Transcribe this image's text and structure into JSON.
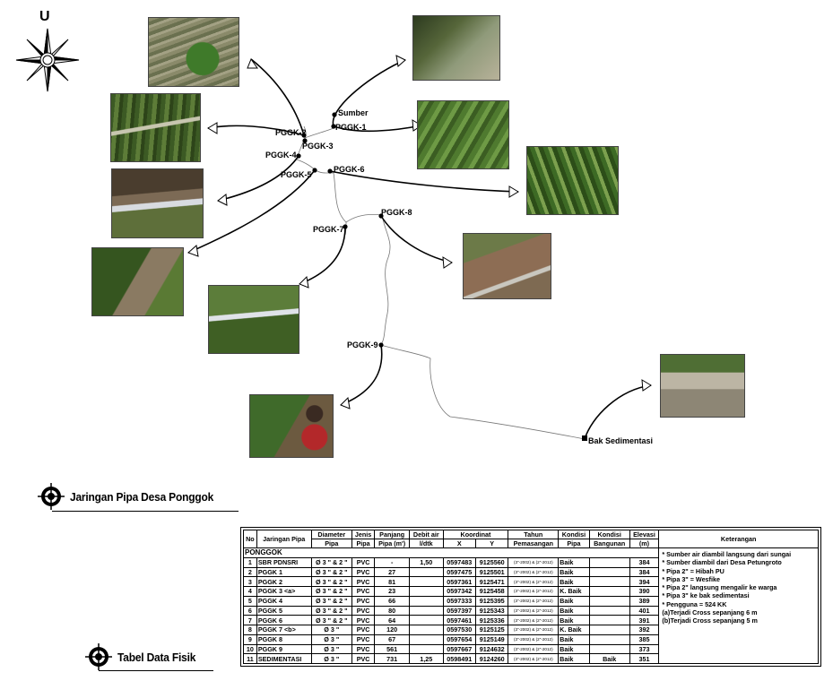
{
  "north_label": "U",
  "map": {
    "points": [
      {
        "id": "Sumber",
        "label": "Sumber"
      },
      {
        "id": "PGGK-1",
        "label": "PGGK-1"
      },
      {
        "id": "PGGK-2",
        "label": "PGGK-2"
      },
      {
        "id": "PGGK-3",
        "label": "PGGK-3"
      },
      {
        "id": "PGGK-4",
        "label": "PGGK-4"
      },
      {
        "id": "PGGK-5",
        "label": "PGGK-5"
      },
      {
        "id": "PGGK-6",
        "label": "PGGK-6"
      },
      {
        "id": "PGGK-7",
        "label": "PGGK-7"
      },
      {
        "id": "PGGK-8",
        "label": "PGGK-8"
      },
      {
        "id": "PGGK-9",
        "label": "PGGK-9"
      },
      {
        "id": "Bak Sedimentasi",
        "label": "Bak Sedimentasi"
      }
    ]
  },
  "headings": {
    "map_title": "Jaringan Pipa Desa Ponggok",
    "table_title": "Tabel Data Fisik"
  },
  "table": {
    "headers": {
      "no": "No",
      "jaringan": "Jaringan Pipa",
      "diameter": "Diameter",
      "diameter_sub": "Pipa",
      "jenis": "Jenis",
      "jenis_sub": "Pipa",
      "panjang": "Panjang",
      "panjang_sub": "Pipa (m')",
      "debit": "Debit air",
      "debit_sub": "l/dtk",
      "koordinat": "Koordinat",
      "x": "X",
      "y": "Y",
      "tahun": "Tahun",
      "tahun_sub": "Pemasangan",
      "kondisi_pipa": "Kondisi",
      "kondisi_pipa_sub": "Pipa",
      "kondisi_bangunan": "Kondisi",
      "kondisi_bangunan_sub": "Bangunan",
      "elevasi": "Elevasi",
      "elevasi_sub": "(m)",
      "keterangan": "Keterangan"
    },
    "group": "PONGGOK",
    "rows": [
      {
        "no": "1",
        "jaringan": "SBR PDNSRI",
        "diameter": "Ø 3 \" & 2 \"",
        "jenis": "PVC",
        "panjang": "-",
        "debit": "1,50",
        "x": "0597483",
        "y": "9125560",
        "tahun": "(3\"-2002) & (2\"-2012)",
        "kondisi_pipa": "Baik",
        "kondisi_bangunan": "",
        "elevasi": "384"
      },
      {
        "no": "2",
        "jaringan": "PGGK 1",
        "diameter": "Ø 3 \" & 2 \"",
        "jenis": "PVC",
        "panjang": "27",
        "debit": "",
        "x": "0597475",
        "y": "9125501",
        "tahun": "(3\"-2002) & (2\"-2012)",
        "kondisi_pipa": "Baik",
        "kondisi_bangunan": "",
        "elevasi": "384"
      },
      {
        "no": "3",
        "jaringan": "PGGK 2",
        "diameter": "Ø 3 \" & 2 \"",
        "jenis": "PVC",
        "panjang": "81",
        "debit": "",
        "x": "0597361",
        "y": "9125471",
        "tahun": "(3\"-2002) & (2\"-2012)",
        "kondisi_pipa": "Baik",
        "kondisi_bangunan": "",
        "elevasi": "394"
      },
      {
        "no": "4",
        "jaringan": "PGGK 3 <a>",
        "diameter": "Ø 3 \" & 2 \"",
        "jenis": "PVC",
        "panjang": "23",
        "debit": "",
        "x": "0597342",
        "y": "9125458",
        "tahun": "(3\"-2002) & (2\"-2012)",
        "kondisi_pipa": "K. Baik",
        "kondisi_bangunan": "",
        "elevasi": "390"
      },
      {
        "no": "5",
        "jaringan": "PGGK 4",
        "diameter": "Ø 3 \" & 2 \"",
        "jenis": "PVC",
        "panjang": "66",
        "debit": "",
        "x": "0597333",
        "y": "9125395",
        "tahun": "(3\"-2002) & (2\"-2012)",
        "kondisi_pipa": "Baik",
        "kondisi_bangunan": "",
        "elevasi": "389"
      },
      {
        "no": "6",
        "jaringan": "PGGK 5",
        "diameter": "Ø 3 \" & 2 \"",
        "jenis": "PVC",
        "panjang": "80",
        "debit": "",
        "x": "0597397",
        "y": "9125343",
        "tahun": "(3\"-2002) & (2\"-2012)",
        "kondisi_pipa": "Baik",
        "kondisi_bangunan": "",
        "elevasi": "401"
      },
      {
        "no": "7",
        "jaringan": "PGGK 6",
        "diameter": "Ø 3 \" & 2 \"",
        "jenis": "PVC",
        "panjang": "64",
        "debit": "",
        "x": "0597461",
        "y": "9125336",
        "tahun": "(3\"-2002) & (2\"-2012)",
        "kondisi_pipa": "Baik",
        "kondisi_bangunan": "",
        "elevasi": "391"
      },
      {
        "no": "8",
        "jaringan": "PGGK 7 <b>",
        "diameter": "Ø 3 \"",
        "jenis": "PVC",
        "panjang": "120",
        "debit": "",
        "x": "0597530",
        "y": "9125125",
        "tahun": "(3\"-2002) & (2\"-2012)",
        "kondisi_pipa": "K. Baik",
        "kondisi_bangunan": "",
        "elevasi": "392"
      },
      {
        "no": "9",
        "jaringan": "PGGK 8",
        "diameter": "Ø 3 \"",
        "jenis": "PVC",
        "panjang": "67",
        "debit": "",
        "x": "0597654",
        "y": "9125149",
        "tahun": "(3\"-2002) & (2\"-2012)",
        "kondisi_pipa": "Baik",
        "kondisi_bangunan": "",
        "elevasi": "385"
      },
      {
        "no": "10",
        "jaringan": "PGGK 9",
        "diameter": "Ø 3 \"",
        "jenis": "PVC",
        "panjang": "561",
        "debit": "",
        "x": "0597667",
        "y": "9124632",
        "tahun": "(3\"-2002) & (2\"-2012)",
        "kondisi_pipa": "Baik",
        "kondisi_bangunan": "",
        "elevasi": "373"
      },
      {
        "no": "11",
        "jaringan": "SEDIMENTASI",
        "diameter": "Ø 3 \"",
        "jenis": "PVC",
        "panjang": "731",
        "debit": "1,25",
        "x": "0598491",
        "y": "9124260",
        "tahun": "(3\"-2002) & (2\"-2012)",
        "kondisi_pipa": "Baik",
        "kondisi_bangunan": "Baik",
        "elevasi": "351"
      }
    ],
    "notes": [
      "* Sumber air diambil langsung dari sungai",
      "* Sumber diambil dari Desa Petungroto",
      "* Pipa 2\" = Hibah PU",
      "* Pipa 3\" = Wesfike",
      "* Pipa 2\" langsung mengalir ke warga",
      "* Pipa 3\" ke bak sedimentasi",
      "* Pengguna = 524 KK",
      "(a)Terjadi Cross sepanjang 6 m",
      "(b)Terjadi Cross sepanjang 5 m"
    ]
  }
}
